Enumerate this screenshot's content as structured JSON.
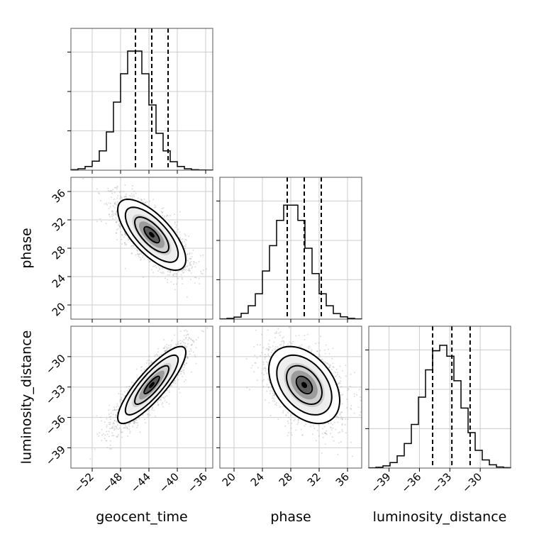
{
  "chart_data": {
    "type": "corner",
    "parameters": [
      "geocent_time",
      "phase",
      "luminosity_distance"
    ],
    "grid": true,
    "colors": {
      "line": "#000000",
      "grid": "#cccccc",
      "scatter": "#9a9a9a",
      "density": "#3a3a3a"
    },
    "histograms": [
      {
        "parameter": "geocent_time",
        "range": [
          -55,
          -35
        ],
        "bins": 20,
        "counts": [
          0.2,
          0.5,
          1.3,
          3.2,
          6.8,
          13.5,
          24,
          34,
          42,
          42,
          34,
          23,
          13,
          6.8,
          3,
          1.3,
          0.5,
          0.2,
          0.1,
          0.05
        ],
        "ylim": [
          0,
          50
        ],
        "quantiles": [
          -45.9,
          -43.6,
          -41.3
        ],
        "xticks": [
          -52,
          -48,
          -44,
          -40,
          -36
        ],
        "xtick_labels": [
          "−52",
          "−48",
          "−44",
          "−40",
          "−36"
        ]
      },
      {
        "parameter": "phase",
        "range": [
          18,
          38
        ],
        "bins": 20,
        "counts": [
          0.1,
          0.3,
          0.8,
          2.3,
          5.3,
          10,
          19,
          29,
          39,
          45,
          45,
          39,
          28,
          18,
          10,
          5.3,
          2.2,
          0.9,
          0.3,
          0.1
        ],
        "ylim": [
          0,
          56
        ],
        "quantiles": [
          27.5,
          29.9,
          32.3
        ],
        "xticks": [
          20,
          24,
          28,
          32,
          36
        ],
        "xtick_labels": [
          "20",
          "24",
          "28",
          "32",
          "36"
        ]
      },
      {
        "parameter": "luminosity_distance",
        "range": [
          -41,
          -27
        ],
        "bins": 20,
        "counts": [
          0.1,
          0.3,
          0.8,
          2,
          4.5,
          9,
          16,
          26,
          36,
          43,
          45,
          41,
          32,
          22,
          13,
          6.5,
          3,
          1.2,
          0.4,
          0.15
        ],
        "ylim": [
          0,
          52
        ],
        "quantiles": [
          -34.7,
          -32.8,
          -31
        ],
        "xticks": [
          -39,
          -36,
          -33,
          -30
        ],
        "xtick_labels": [
          "−39",
          "−36",
          "−33",
          "−30"
        ]
      }
    ],
    "scatter_panels": [
      {
        "x": "geocent_time",
        "y": "phase",
        "mean": [
          -43.6,
          29.9
        ],
        "sd": [
          2.4,
          2.5
        ],
        "rho": -0.7
      },
      {
        "x": "geocent_time",
        "y": "luminosity_distance",
        "mean": [
          -43.6,
          -32.8
        ],
        "sd": [
          2.4,
          1.9
        ],
        "rho": 0.85
      },
      {
        "x": "phase",
        "y": "luminosity_distance",
        "mean": [
          29.9,
          -32.8
        ],
        "sd": [
          2.5,
          1.9
        ],
        "rho": -0.4
      }
    ],
    "ytick_axes": {
      "phase": {
        "range": [
          18,
          38
        ],
        "ticks": [
          20,
          24,
          28,
          32,
          36
        ],
        "labels": [
          "20",
          "24",
          "28",
          "32",
          "36"
        ]
      },
      "luminosity_distance": {
        "range": [
          -41,
          -27
        ],
        "ticks": [
          -39,
          -36,
          -33,
          -30
        ],
        "labels": [
          "−39",
          "−36",
          "−33",
          "−30"
        ]
      }
    },
    "axis_labels": {
      "x": [
        "geocent_time",
        "phase",
        "luminosity_distance"
      ],
      "y": [
        "phase",
        "luminosity_distance"
      ]
    }
  }
}
